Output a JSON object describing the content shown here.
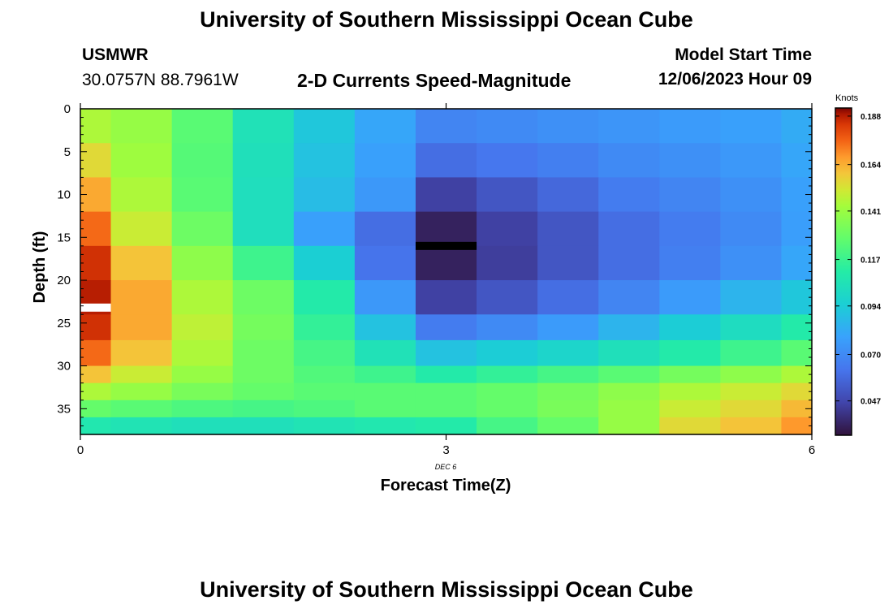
{
  "title": "University of Southern Mississippi Ocean Cube",
  "footer_title": "University of Southern Mississippi Ocean Cube",
  "station": "USMWR",
  "coords": "30.0757N  88.7961W",
  "subtitle": "2-D Currents Speed-Magnitude",
  "model_label": "Model Start Time",
  "model_time": "12/06/2023 Hour 09",
  "chart_data": {
    "type": "heatmap",
    "xlabel": "Forecast Time(Z)",
    "ylabel": "Depth (ft)",
    "x_date_label": "DEC 6",
    "xlim": [
      0,
      6
    ],
    "ylim": [
      38,
      0
    ],
    "x_ticks": [
      0,
      3,
      6
    ],
    "y_ticks": [
      0,
      5,
      10,
      15,
      20,
      25,
      30,
      35
    ],
    "colorbar": {
      "title": "Knots",
      "ticks": [
        0.188,
        0.164,
        0.141,
        0.117,
        0.094,
        0.07,
        0.047
      ],
      "range": [
        0.03,
        0.192
      ]
    },
    "x_edges": [
      0,
      0.25,
      0.75,
      1.25,
      1.75,
      2.25,
      2.75,
      3.25,
      3.75,
      4.25,
      4.75,
      5.25,
      5.75,
      6.0
    ],
    "y_edges": [
      0,
      4,
      8,
      12,
      16,
      20,
      24,
      27,
      30,
      32,
      34,
      36,
      38
    ],
    "values": [
      [
        0.145,
        0.14,
        0.125,
        0.105,
        0.092,
        0.08,
        0.068,
        0.07,
        0.072,
        0.074,
        0.076,
        0.078,
        0.082
      ],
      [
        0.155,
        0.142,
        0.124,
        0.104,
        0.09,
        0.078,
        0.06,
        0.063,
        0.066,
        0.07,
        0.072,
        0.075,
        0.08
      ],
      [
        0.165,
        0.145,
        0.125,
        0.103,
        0.088,
        0.075,
        0.045,
        0.052,
        0.058,
        0.065,
        0.068,
        0.072,
        0.078
      ],
      [
        0.175,
        0.15,
        0.13,
        0.103,
        0.078,
        0.06,
        0.035,
        0.045,
        0.052,
        0.06,
        0.065,
        0.07,
        0.077
      ],
      [
        0.185,
        0.16,
        0.138,
        0.118,
        0.095,
        0.062,
        0.035,
        0.044,
        0.052,
        0.06,
        0.066,
        0.072,
        0.08
      ],
      [
        0.188,
        0.165,
        0.145,
        0.13,
        0.11,
        0.075,
        0.045,
        0.052,
        0.06,
        0.068,
        0.076,
        0.085,
        0.092
      ],
      [
        0.185,
        0.165,
        0.148,
        0.132,
        0.115,
        0.09,
        0.065,
        0.07,
        0.076,
        0.085,
        0.094,
        0.102,
        0.11
      ],
      [
        0.175,
        0.16,
        0.145,
        0.13,
        0.12,
        0.105,
        0.09,
        0.094,
        0.098,
        0.104,
        0.11,
        0.118,
        0.125
      ],
      [
        0.16,
        0.15,
        0.14,
        0.13,
        0.123,
        0.118,
        0.11,
        0.115,
        0.12,
        0.125,
        0.132,
        0.138,
        0.145
      ],
      [
        0.145,
        0.14,
        0.133,
        0.128,
        0.125,
        0.125,
        0.125,
        0.128,
        0.132,
        0.138,
        0.145,
        0.15,
        0.155
      ],
      [
        0.128,
        0.125,
        0.122,
        0.12,
        0.122,
        0.125,
        0.125,
        0.128,
        0.133,
        0.14,
        0.15,
        0.155,
        0.162
      ],
      [
        0.108,
        0.106,
        0.104,
        0.104,
        0.106,
        0.108,
        0.11,
        0.12,
        0.128,
        0.14,
        0.155,
        0.16,
        0.168
      ]
    ],
    "markers": [
      {
        "x": [
          0,
          0.25
        ],
        "depth": 23.2,
        "color": "#ffffff"
      },
      {
        "x": [
          2.75,
          3.25
        ],
        "depth": 16.0,
        "color": "#000000"
      }
    ]
  }
}
